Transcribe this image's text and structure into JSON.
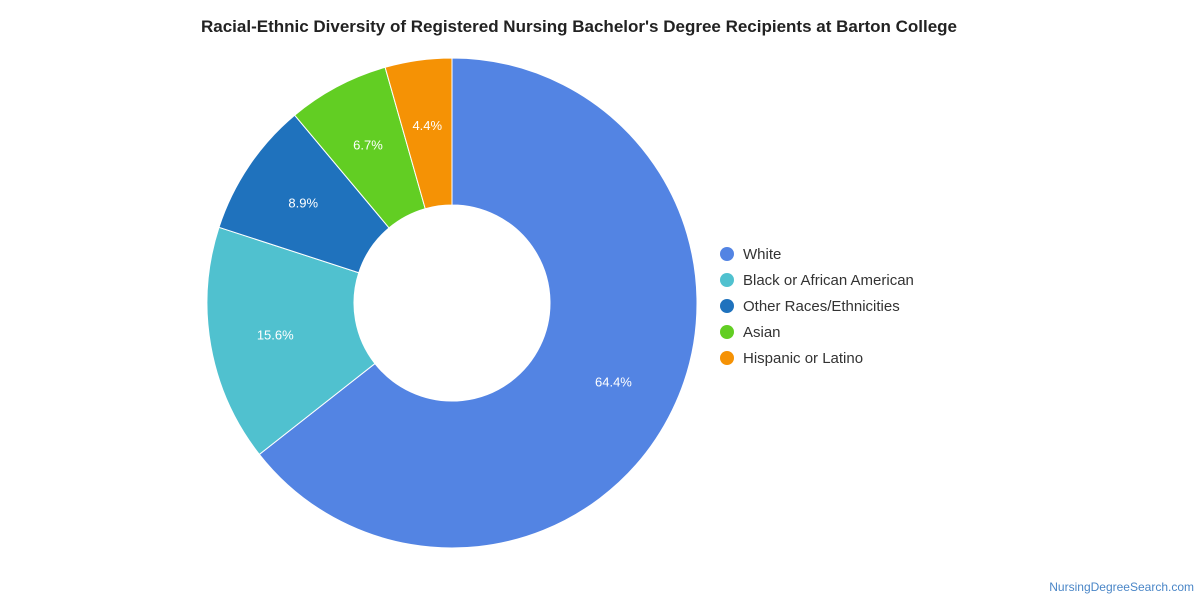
{
  "chart_data": {
    "type": "pie",
    "title": "Racial-Ethnic Diversity of Registered Nursing Bachelor's Degree Recipients at Barton College",
    "donut": true,
    "legend_position": "right",
    "categories": [
      "White",
      "Black or African American",
      "Other Races/Ethnicities",
      "Asian",
      "Hispanic or Latino"
    ],
    "values": [
      64.4,
      15.6,
      8.9,
      6.7,
      4.4
    ],
    "labels": [
      "64.4%",
      "15.6%",
      "8.9%",
      "6.7%",
      "4.4%"
    ],
    "colors": [
      "#5384e3",
      "#50c1cf",
      "#1f72bd",
      "#62ce23",
      "#f59205"
    ]
  },
  "source": {
    "label": "NursingDegreeSearch.com"
  }
}
